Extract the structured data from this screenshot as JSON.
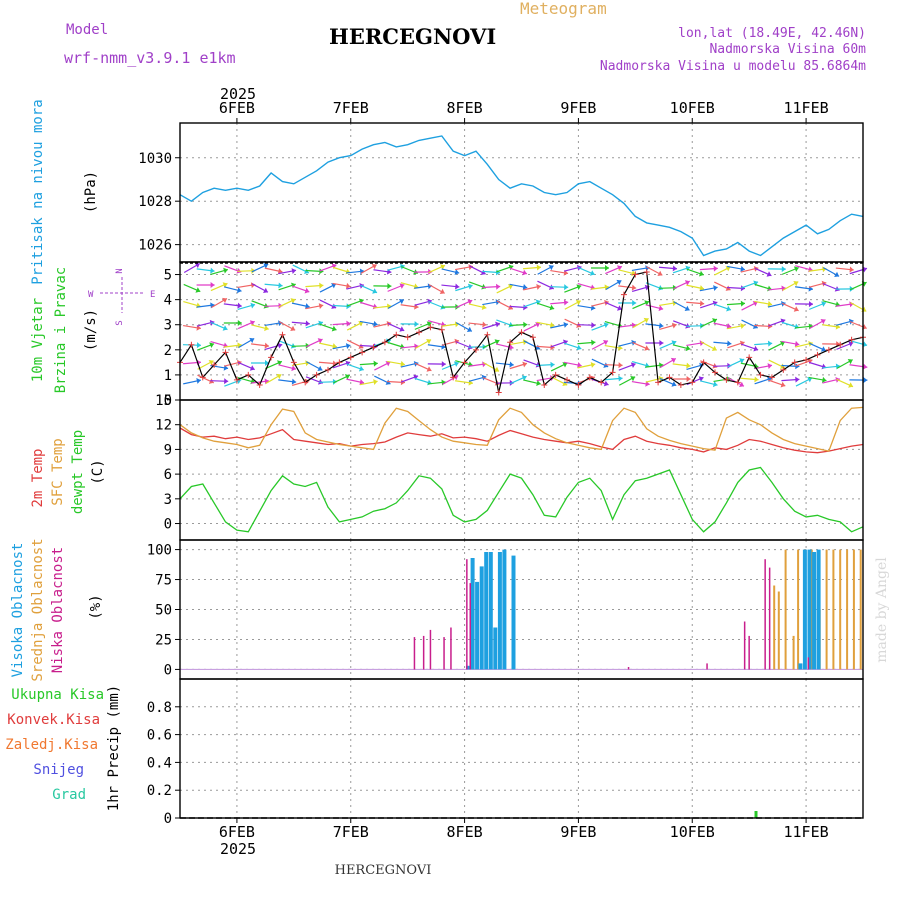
{
  "header": {
    "model_label": "Model",
    "model_name": "wrf-nmm_v3.9.1 e1km",
    "city": "HERCEGNOVI",
    "meteogram_label": "Meteogram",
    "lonlat": "lon,lat (18.49E, 42.46N)",
    "elevation": "Nadmorska Visina 60m",
    "model_elevation": "Nadmorska Visina u modelu 85.6864m",
    "footer_city": "HERCEGNOVI",
    "watermark": "made by Angel",
    "year_top": "2025",
    "year_bottom": "2025"
  },
  "colors": {
    "pressure": "#1ea0e0",
    "temp2m": "#e03c3c",
    "sfc": "#e0a03c",
    "dewpt": "#28c828",
    "high_cloud": "#1ea0e0",
    "mid_cloud": "#e0a03c",
    "low_cloud": "#c81e8c",
    "rain_total": "#28c828",
    "rain_conv": "#e03c3c",
    "freezing": "#f07830",
    "snow": "#5050e0",
    "hail": "#28c8a0",
    "wind_label": "#28c828",
    "speed_line": "#000000",
    "speed_marker": "#e03c3c"
  },
  "chart_data": [
    {
      "id": "pressure",
      "type": "line",
      "panel_labels": [
        "Pritisak na nivou mora",
        "(hPa)"
      ],
      "x_ticks": [
        "6FEB",
        "7FEB",
        "8FEB",
        "9FEB",
        "10FEB",
        "11FEB"
      ],
      "x_range_days": [
        5.5,
        11.5
      ],
      "ylim": [
        1025.2,
        1031.6
      ],
      "y_ticks": [
        1026,
        1028,
        1030
      ],
      "series": [
        {
          "x": [
            5.5,
            5.6,
            5.7,
            5.8,
            5.9,
            6.0,
            6.1,
            6.2,
            6.3,
            6.4,
            6.5,
            6.6,
            6.7,
            6.8,
            6.9,
            7.0,
            7.1,
            7.2,
            7.3,
            7.4,
            7.5,
            7.6,
            7.7,
            7.8,
            7.9,
            8.0,
            8.1,
            8.2,
            8.3,
            8.4,
            8.5,
            8.6,
            8.7,
            8.8,
            8.9,
            9.0,
            9.1,
            9.2,
            9.3,
            9.4,
            9.5,
            9.6,
            9.7,
            9.8,
            9.9,
            10.0,
            10.1,
            10.2,
            10.3,
            10.4,
            10.5,
            10.6,
            10.7,
            10.8,
            10.9,
            11.0,
            11.1,
            11.2,
            11.3,
            11.4,
            11.5
          ],
          "values": [
            1028.3,
            1028.0,
            1028.4,
            1028.6,
            1028.5,
            1028.6,
            1028.5,
            1028.7,
            1029.3,
            1028.9,
            1028.8,
            1029.1,
            1029.4,
            1029.8,
            1030.0,
            1030.1,
            1030.4,
            1030.6,
            1030.7,
            1030.5,
            1030.6,
            1030.8,
            1030.9,
            1031.0,
            1030.3,
            1030.1,
            1030.3,
            1029.7,
            1029.0,
            1028.6,
            1028.8,
            1028.7,
            1028.4,
            1028.3,
            1028.4,
            1028.8,
            1028.9,
            1028.6,
            1028.3,
            1027.9,
            1027.3,
            1027.0,
            1026.9,
            1026.8,
            1026.6,
            1026.3,
            1025.5,
            1025.7,
            1025.8,
            1026.1,
            1025.7,
            1025.5,
            1025.9,
            1026.3,
            1026.6,
            1026.9,
            1026.5,
            1026.7,
            1027.1,
            1027.4,
            1027.3
          ]
        }
      ]
    },
    {
      "id": "wind",
      "type": "line",
      "panel_labels": [
        "10m Vjetar",
        "Brzina i Pravac",
        "(m/s)"
      ],
      "compass": {
        "w": "W",
        "e": "E",
        "n": "N",
        "s": "S"
      },
      "ylim": [
        0,
        5.5
      ],
      "y_ticks": [
        0,
        1,
        2,
        3,
        4,
        5
      ],
      "series": [
        {
          "x": [
            5.5,
            5.6,
            5.7,
            5.8,
            5.9,
            6.0,
            6.1,
            6.2,
            6.3,
            6.4,
            6.5,
            6.6,
            6.7,
            6.8,
            6.9,
            7.0,
            7.1,
            7.2,
            7.3,
            7.4,
            7.5,
            7.6,
            7.7,
            7.8,
            7.9,
            8.0,
            8.1,
            8.2,
            8.3,
            8.4,
            8.5,
            8.6,
            8.7,
            8.8,
            8.9,
            9.0,
            9.1,
            9.2,
            9.3,
            9.4,
            9.5,
            9.6,
            9.7,
            9.8,
            9.9,
            10.0,
            10.1,
            10.2,
            10.3,
            10.4,
            10.5,
            10.6,
            10.7,
            10.8,
            10.9,
            11.0,
            11.1,
            11.2,
            11.3,
            11.4,
            11.5
          ],
          "values": [
            1.5,
            2.2,
            0.9,
            1.4,
            1.9,
            0.8,
            1.0,
            0.6,
            1.7,
            2.6,
            1.5,
            0.7,
            1.0,
            1.2,
            1.5,
            1.7,
            1.9,
            2.1,
            2.3,
            2.6,
            2.5,
            2.7,
            2.9,
            2.8,
            0.9,
            1.5,
            2.0,
            2.6,
            0.3,
            2.3,
            2.7,
            2.5,
            0.6,
            1.0,
            0.8,
            0.6,
            0.9,
            0.7,
            1.1,
            4.2,
            5.0,
            5.1,
            0.7,
            0.9,
            0.6,
            0.7,
            1.5,
            1.1,
            0.8,
            0.7,
            1.7,
            1.0,
            0.9,
            1.2,
            1.5,
            1.6,
            1.8,
            2.0,
            2.2,
            2.4,
            2.5
          ]
        }
      ]
    },
    {
      "id": "temperature",
      "type": "line",
      "panel_labels": [
        "2m Temp",
        "SFC Temp",
        "dewpt Temp",
        "(C)"
      ],
      "ylim": [
        -2,
        15
      ],
      "y_ticks": [
        0,
        3,
        6,
        9,
        12,
        15
      ],
      "series": [
        {
          "key": "temp2m",
          "x": [
            5.5,
            5.6,
            5.7,
            5.8,
            5.9,
            6.0,
            6.1,
            6.2,
            6.3,
            6.4,
            6.5,
            6.6,
            6.7,
            6.8,
            6.9,
            7.0,
            7.1,
            7.2,
            7.3,
            7.4,
            7.5,
            7.6,
            7.7,
            7.8,
            7.9,
            8.0,
            8.1,
            8.2,
            8.3,
            8.4,
            8.5,
            8.6,
            8.7,
            8.8,
            8.9,
            9.0,
            9.1,
            9.2,
            9.3,
            9.4,
            9.5,
            9.6,
            9.7,
            9.8,
            9.9,
            10.0,
            10.1,
            10.2,
            10.3,
            10.4,
            10.5,
            10.6,
            10.7,
            10.8,
            10.9,
            11.0,
            11.1,
            11.2,
            11.3,
            11.4,
            11.5
          ],
          "values": [
            11.6,
            10.8,
            10.5,
            10.6,
            10.3,
            10.5,
            10.2,
            10.4,
            10.9,
            11.4,
            10.2,
            10.0,
            9.8,
            9.6,
            9.7,
            9.4,
            9.6,
            9.7,
            9.9,
            10.5,
            11.0,
            10.8,
            10.6,
            10.9,
            10.4,
            10.5,
            10.3,
            10.0,
            10.7,
            11.3,
            10.9,
            10.5,
            10.2,
            10.0,
            9.8,
            10.0,
            9.7,
            9.3,
            9.0,
            10.2,
            10.6,
            10.0,
            9.7,
            9.5,
            9.2,
            9.0,
            8.7,
            9.2,
            9.0,
            9.5,
            10.2,
            10.0,
            9.6,
            9.2,
            8.9,
            8.7,
            8.6,
            8.8,
            9.1,
            9.4,
            9.6
          ]
        },
        {
          "key": "sfc",
          "x": [
            5.5,
            5.6,
            5.7,
            5.8,
            5.9,
            6.0,
            6.1,
            6.2,
            6.3,
            6.4,
            6.5,
            6.6,
            6.7,
            6.8,
            6.9,
            7.0,
            7.1,
            7.2,
            7.3,
            7.4,
            7.5,
            7.6,
            7.7,
            7.8,
            7.9,
            8.0,
            8.1,
            8.2,
            8.3,
            8.4,
            8.5,
            8.6,
            8.7,
            8.8,
            8.9,
            9.0,
            9.1,
            9.2,
            9.3,
            9.4,
            9.5,
            9.6,
            9.7,
            9.8,
            9.9,
            10.0,
            10.1,
            10.2,
            10.3,
            10.4,
            10.5,
            10.6,
            10.7,
            10.8,
            10.9,
            11.0,
            11.1,
            11.2,
            11.3,
            11.4,
            11.5
          ],
          "values": [
            12.0,
            11.0,
            10.4,
            10.0,
            9.8,
            9.6,
            9.2,
            9.5,
            12.0,
            13.9,
            13.6,
            11.0,
            10.2,
            9.9,
            9.6,
            9.4,
            9.2,
            9.0,
            12.2,
            14.0,
            13.6,
            12.5,
            11.4,
            10.5,
            10.0,
            9.8,
            9.6,
            9.5,
            12.6,
            14.0,
            13.5,
            12.0,
            11.0,
            10.3,
            9.8,
            9.5,
            9.2,
            9.0,
            12.5,
            14.0,
            13.5,
            11.5,
            10.6,
            10.1,
            9.7,
            9.4,
            9.1,
            8.9,
            12.8,
            13.5,
            12.6,
            12.0,
            11.0,
            10.2,
            9.7,
            9.4,
            9.1,
            8.8,
            12.5,
            14.0,
            14.1
          ]
        },
        {
          "key": "dewpt",
          "x": [
            5.5,
            5.6,
            5.7,
            5.8,
            5.9,
            6.0,
            6.1,
            6.2,
            6.3,
            6.4,
            6.5,
            6.6,
            6.7,
            6.8,
            6.9,
            7.0,
            7.1,
            7.2,
            7.3,
            7.4,
            7.5,
            7.6,
            7.7,
            7.8,
            7.9,
            8.0,
            8.1,
            8.2,
            8.3,
            8.4,
            8.5,
            8.6,
            8.7,
            8.8,
            8.9,
            9.0,
            9.1,
            9.2,
            9.3,
            9.4,
            9.5,
            9.6,
            9.7,
            9.8,
            9.9,
            10.0,
            10.1,
            10.2,
            10.3,
            10.4,
            10.5,
            10.6,
            10.7,
            10.8,
            10.9,
            11.0,
            11.1,
            11.2,
            11.3,
            11.4,
            11.5
          ],
          "values": [
            3.0,
            4.5,
            4.8,
            2.5,
            0.2,
            -0.8,
            -1.0,
            1.5,
            4.0,
            5.8,
            4.8,
            4.5,
            5.0,
            2.0,
            0.2,
            0.5,
            0.8,
            1.5,
            1.8,
            2.5,
            4.0,
            5.8,
            5.5,
            4.2,
            1.0,
            0.2,
            0.5,
            1.6,
            3.8,
            6.0,
            5.5,
            3.5,
            1.0,
            0.8,
            3.2,
            5.0,
            5.5,
            4.0,
            0.5,
            3.5,
            5.2,
            5.5,
            6.0,
            6.5,
            3.5,
            0.5,
            -1.0,
            0.2,
            2.5,
            5.0,
            6.5,
            6.8,
            5.0,
            3.0,
            1.5,
            0.8,
            1.0,
            0.5,
            0.2,
            -1.0,
            -0.4
          ]
        }
      ]
    },
    {
      "id": "cloud",
      "type": "bar",
      "panel_labels": [
        "Visoka Oblacnost",
        "Srednja Oblacnost",
        "Niska Oblacnost",
        "(%)"
      ],
      "ylim": [
        -8,
        108
      ],
      "y_ticks": [
        0,
        25,
        50,
        75,
        100
      ],
      "high": {
        "x": [
          8.03,
          8.07,
          8.11,
          8.15,
          8.19,
          8.23,
          8.27,
          8.31,
          8.35,
          8.43,
          10.95,
          10.99,
          11.03,
          11.07,
          11.11
        ],
        "values": [
          3,
          93,
          73,
          86,
          98,
          98,
          35,
          98,
          100,
          95,
          5,
          100,
          100,
          98,
          100
        ]
      },
      "mid": {
        "x": [
          8.07,
          8.11,
          8.43,
          10.72,
          10.76,
          10.82,
          10.89,
          10.93,
          10.99,
          11.05,
          11.12,
          11.18,
          11.24,
          11.3,
          11.36,
          11.42,
          11.48
        ],
        "values": [
          5,
          8,
          25,
          70,
          65,
          100,
          28,
          100,
          100,
          100,
          50,
          100,
          100,
          100,
          100,
          100,
          100
        ]
      },
      "low": {
        "x": [
          7.56,
          7.64,
          7.7,
          7.82,
          7.88,
          8.02,
          8.05,
          9.44,
          10.13,
          10.46,
          10.5,
          10.64,
          10.68,
          11.02
        ],
        "values": [
          27,
          28,
          33,
          27,
          35,
          92,
          72,
          2,
          5,
          40,
          28,
          92,
          85,
          10
        ]
      }
    },
    {
      "id": "precip",
      "type": "bar",
      "panel_labels": [
        "Ukupna Kisa",
        "Konvek.Kisa",
        "Zaledj.Kisa",
        "Snijeg",
        "Grad",
        "1hr Precip (mm)"
      ],
      "ylim": [
        0,
        1.0
      ],
      "y_ticks": [
        0,
        0.2,
        0.4,
        0.6,
        0.8
      ],
      "y_tick_labels": [
        "0",
        "0.2",
        "0.4",
        "0.6",
        "0.8"
      ],
      "total": {
        "x": [
          10.56
        ],
        "values": [
          0.05
        ]
      }
    }
  ]
}
